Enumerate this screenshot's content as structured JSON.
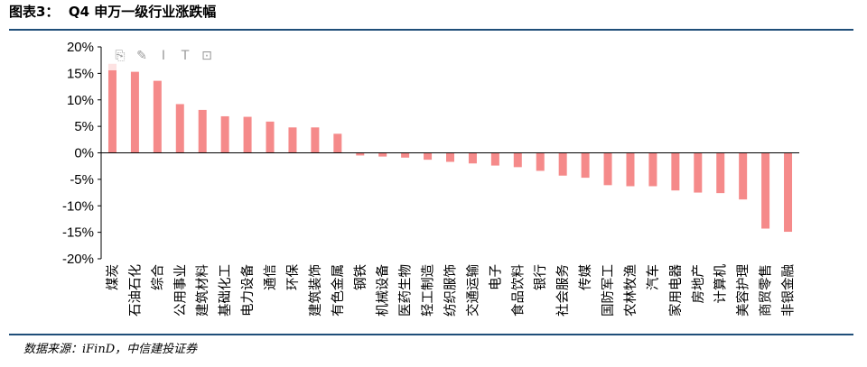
{
  "header": {
    "title": "图表3：  Q4 申万一级行业涨跌幅"
  },
  "source": "数据来源：iFinD，中信建投证券",
  "toolbar": {
    "icons": [
      "copy-icon",
      "highlight-icon",
      "text-cursor-icon",
      "text-insert-icon",
      "crop-icon"
    ]
  },
  "colors": {
    "bar": "#f58a8a",
    "rule": "#1f4e79",
    "axis": "#000000"
  },
  "chart_data": {
    "type": "bar",
    "categories": [
      "煤炭",
      "石油石化",
      "综合",
      "公用事业",
      "建筑材料",
      "基础化工",
      "电力设备",
      "通信",
      "环保",
      "建筑装饰",
      "有色金属",
      "钢铁",
      "机械设备",
      "医药生物",
      "轻工制造",
      "纺织服饰",
      "交通运输",
      "电子",
      "食品饮料",
      "银行",
      "社会服务",
      "传媒",
      "国防军工",
      "农林牧渔",
      "汽车",
      "家用电器",
      "房地产",
      "计算机",
      "美容护理",
      "商贸零售",
      "非银金融"
    ],
    "values": [
      16.8,
      15.3,
      13.6,
      9.2,
      8.1,
      6.9,
      6.8,
      5.9,
      4.8,
      4.8,
      3.6,
      -0.5,
      -0.7,
      -0.9,
      -1.3,
      -1.7,
      -2.0,
      -2.4,
      -2.7,
      -3.4,
      -4.3,
      -4.7,
      -6.1,
      -6.3,
      -6.3,
      -7.1,
      -7.5,
      -7.6,
      -8.8,
      -14.3,
      -14.9
    ],
    "yticks": [
      "20%",
      "15%",
      "10%",
      "5%",
      "0%",
      "-5%",
      "-10%",
      "-15%",
      "-20%"
    ],
    "ylim": [
      -20,
      20
    ],
    "grid": false,
    "legend": "none"
  }
}
